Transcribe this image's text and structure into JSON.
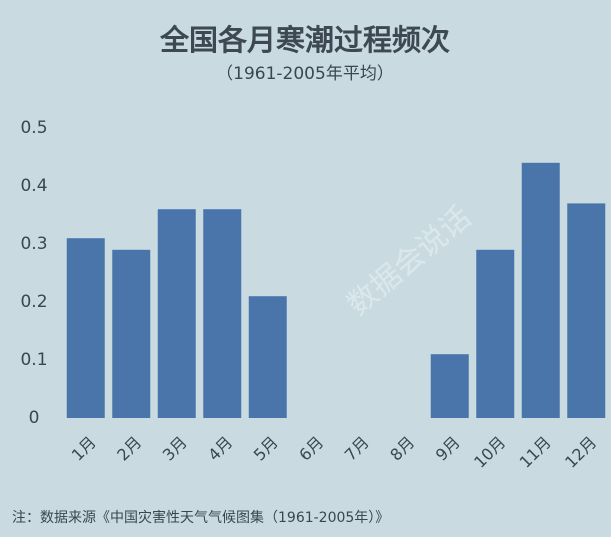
{
  "chart_data": {
    "type": "bar",
    "title": "全国各月寒潮过程频次",
    "subtitle": "（1961-2005年平均）",
    "categories": [
      "1月",
      "2月",
      "3月",
      "4月",
      "5月",
      "6月",
      "7月",
      "8月",
      "9月",
      "10月",
      "11月",
      "12月"
    ],
    "values": [
      0.31,
      0.29,
      0.36,
      0.36,
      0.21,
      0,
      0,
      0,
      0.11,
      0.29,
      0.44,
      0.37
    ],
    "color": "#4a75ab",
    "ylim": [
      0,
      0.5
    ],
    "yticks": [
      0,
      0.1,
      0.2,
      0.3,
      0.4,
      0.5
    ],
    "grid": false,
    "source": "注：数据来源《中国灾害性天气气候图集（1961-2005年）》",
    "watermark": "数据会说话"
  }
}
